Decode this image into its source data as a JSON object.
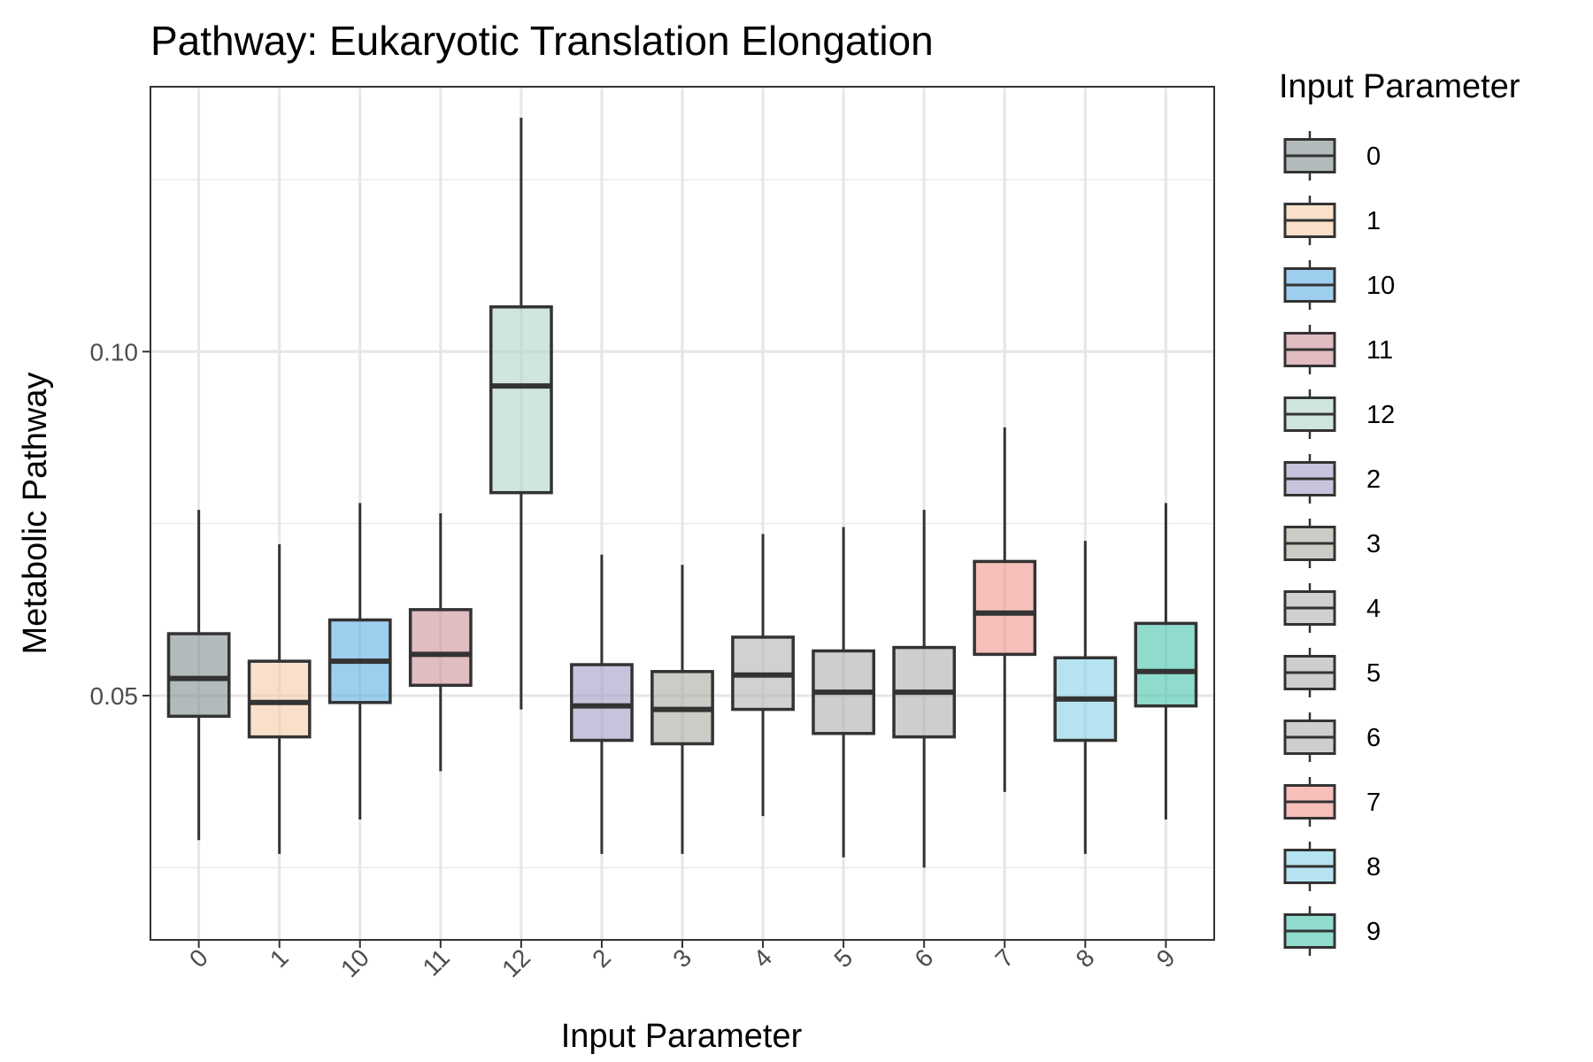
{
  "chart_data": {
    "type": "box",
    "title": "Pathway: Eukaryotic Translation Elongation",
    "xlabel": "Input Parameter",
    "ylabel": "Metabolic Pathway",
    "ylim": [
      0.0145,
      0.1385
    ],
    "yticks": [
      0.05,
      0.1
    ],
    "ytick_labels": [
      "0.05",
      "0.10"
    ],
    "grid": true,
    "legend": {
      "title": "Input Parameter",
      "position": "right"
    },
    "categories": [
      "0",
      "1",
      "10",
      "11",
      "12",
      "2",
      "3",
      "4",
      "5",
      "6",
      "7",
      "8",
      "9"
    ],
    "boxes": [
      {
        "name": "0",
        "color": "#7F8C8D",
        "min": 0.029,
        "q1": 0.047,
        "median": 0.0525,
        "q3": 0.059,
        "max": 0.077
      },
      {
        "name": "1",
        "color": "#F5CBA7",
        "min": 0.027,
        "q1": 0.044,
        "median": 0.049,
        "q3": 0.055,
        "max": 0.072
      },
      {
        "name": "10",
        "color": "#5DADE2",
        "min": 0.032,
        "q1": 0.049,
        "median": 0.055,
        "q3": 0.061,
        "max": 0.078
      },
      {
        "name": "11",
        "color": "#CD9097",
        "min": 0.039,
        "q1": 0.0515,
        "median": 0.056,
        "q3": 0.0625,
        "max": 0.0765
      },
      {
        "name": "12",
        "color": "#B0D4C8",
        "min": 0.048,
        "q1": 0.0795,
        "median": 0.095,
        "q3": 0.1065,
        "max": 0.134
      },
      {
        "name": "2",
        "color": "#A29BC7",
        "min": 0.027,
        "q1": 0.0435,
        "median": 0.0485,
        "q3": 0.0545,
        "max": 0.0705
      },
      {
        "name": "3",
        "color": "#ABA8A0",
        "min": 0.027,
        "q1": 0.043,
        "median": 0.048,
        "q3": 0.0535,
        "max": 0.069
      },
      {
        "name": "4",
        "color": "#B3B3B3",
        "min": 0.0325,
        "q1": 0.048,
        "median": 0.053,
        "q3": 0.0585,
        "max": 0.0735
      },
      {
        "name": "5",
        "color": "#ADADAD",
        "min": 0.0265,
        "q1": 0.0445,
        "median": 0.0505,
        "q3": 0.0565,
        "max": 0.0745
      },
      {
        "name": "6",
        "color": "#ADADAD",
        "min": 0.025,
        "q1": 0.044,
        "median": 0.0505,
        "q3": 0.057,
        "max": 0.077
      },
      {
        "name": "7",
        "color": "#F1948A",
        "min": 0.036,
        "q1": 0.056,
        "median": 0.062,
        "q3": 0.0695,
        "max": 0.089
      },
      {
        "name": "8",
        "color": "#85D1E6",
        "min": 0.027,
        "q1": 0.0435,
        "median": 0.0495,
        "q3": 0.0555,
        "max": 0.0725
      },
      {
        "name": "9",
        "color": "#45C4AE",
        "min": 0.032,
        "q1": 0.0485,
        "median": 0.0535,
        "q3": 0.0605,
        "max": 0.078
      }
    ]
  }
}
